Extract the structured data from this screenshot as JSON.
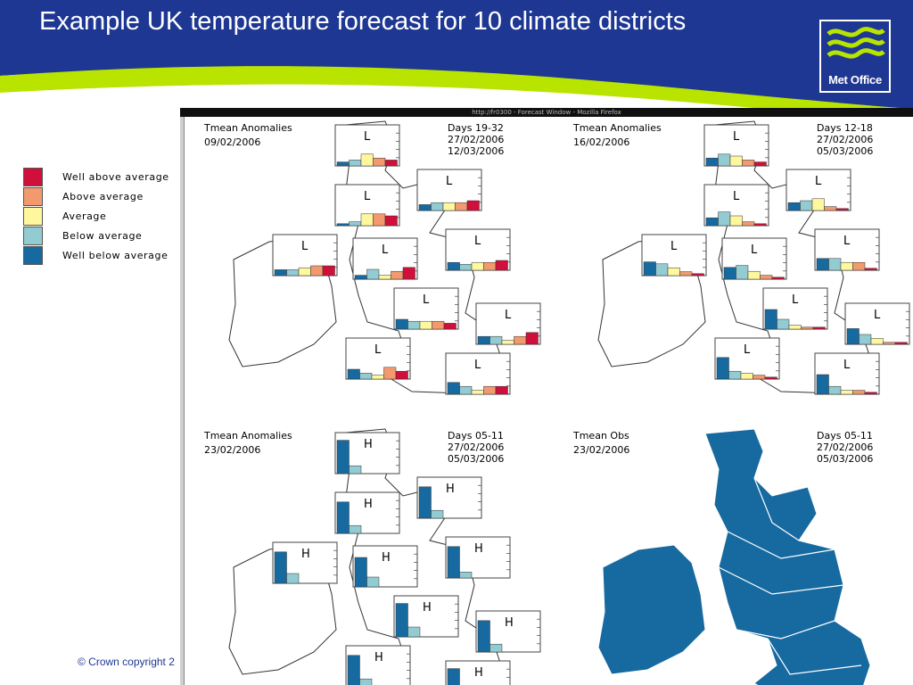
{
  "slide": {
    "title": "Example UK temperature forecast for 10 climate districts",
    "copyright": "© Crown copyright 2",
    "logo_text": "Met Office",
    "banner_color": "#1e3793",
    "accent_color": "#b8e400"
  },
  "legend": {
    "items": [
      {
        "label": "Well above average",
        "color": "#d0103a"
      },
      {
        "label": "Above average",
        "color": "#f29a6e"
      },
      {
        "label": "Average",
        "color": "#fff79e"
      },
      {
        "label": "Below average",
        "color": "#93cbd2"
      },
      {
        "label": "Well below average",
        "color": "#176aa0"
      }
    ]
  },
  "browser": {
    "title": "http://fr0300 - Forecast Window - Mozilla Firefox"
  },
  "panels": [
    {
      "heading": "Tmean Anomalies",
      "issue_date": "09/02/2006",
      "period": "Days 19-32",
      "start": "27/02/2006",
      "end": "12/03/2006",
      "district_values": [
        {
          "label": "L",
          "values": [
            0.1,
            0.15,
            0.3,
            0.2,
            0.15
          ]
        },
        {
          "label": "L",
          "values": [
            0.05,
            0.1,
            0.3,
            0.3,
            0.25
          ]
        },
        {
          "label": "L",
          "values": [
            0.15,
            0.2,
            0.2,
            0.2,
            0.25
          ]
        },
        {
          "label": "L",
          "values": [
            0.15,
            0.15,
            0.2,
            0.25,
            0.25
          ]
        },
        {
          "label": "L",
          "values": [
            0.1,
            0.25,
            0.1,
            0.2,
            0.3
          ]
        },
        {
          "label": "L",
          "values": [
            0.2,
            0.15,
            0.2,
            0.2,
            0.25
          ]
        },
        {
          "label": "L",
          "values": [
            0.25,
            0.2,
            0.2,
            0.2,
            0.15
          ]
        },
        {
          "label": "L",
          "values": [
            0.2,
            0.2,
            0.1,
            0.2,
            0.3
          ]
        },
        {
          "label": "L",
          "values": [
            0.25,
            0.15,
            0.1,
            0.3,
            0.2
          ]
        },
        {
          "label": "L",
          "values": [
            0.3,
            0.2,
            0.1,
            0.2,
            0.2
          ]
        }
      ]
    },
    {
      "heading": "Tmean Anomalies",
      "issue_date": "16/02/2006",
      "period": "Days 12-18",
      "start": "27/02/2006",
      "end": "05/03/2006",
      "district_values": [
        {
          "label": "L",
          "values": [
            0.2,
            0.3,
            0.25,
            0.15,
            0.1
          ]
        },
        {
          "label": "L",
          "values": [
            0.2,
            0.35,
            0.25,
            0.1,
            0.05
          ]
        },
        {
          "label": "L",
          "values": [
            0.2,
            0.25,
            0.3,
            0.1,
            0.05
          ]
        },
        {
          "label": "L",
          "values": [
            0.35,
            0.3,
            0.2,
            0.1,
            0.05
          ]
        },
        {
          "label": "L",
          "values": [
            0.3,
            0.35,
            0.2,
            0.1,
            0.05
          ]
        },
        {
          "label": "L",
          "values": [
            0.3,
            0.3,
            0.2,
            0.2,
            0.05
          ]
        },
        {
          "label": "L",
          "values": [
            0.5,
            0.25,
            0.1,
            0.05,
            0.05
          ]
        },
        {
          "label": "L",
          "values": [
            0.4,
            0.25,
            0.15,
            0.05,
            0.05
          ]
        },
        {
          "label": "L",
          "values": [
            0.55,
            0.2,
            0.15,
            0.1,
            0.05
          ]
        },
        {
          "label": "L",
          "values": [
            0.5,
            0.2,
            0.1,
            0.1,
            0.05
          ]
        }
      ]
    },
    {
      "heading": "Tmean Anomalies",
      "issue_date": "23/02/2006",
      "period": "Days 05-11",
      "start": "27/02/2006",
      "end": "05/03/2006",
      "district_values": [
        {
          "label": "H",
          "values": [
            0.85,
            0.2,
            0,
            0,
            0
          ]
        },
        {
          "label": "H",
          "values": [
            0.8,
            0.2,
            0,
            0,
            0
          ]
        },
        {
          "label": "H",
          "values": [
            0.8,
            0.2,
            0,
            0,
            0
          ]
        },
        {
          "label": "H",
          "values": [
            0.8,
            0.25,
            0,
            0,
            0
          ]
        },
        {
          "label": "H",
          "values": [
            0.75,
            0.25,
            0,
            0,
            0
          ]
        },
        {
          "label": "H",
          "values": [
            0.8,
            0.15,
            0,
            0,
            0
          ]
        },
        {
          "label": "H",
          "values": [
            0.85,
            0.25,
            0,
            0,
            0
          ]
        },
        {
          "label": "H",
          "values": [
            0.8,
            0.2,
            0,
            0,
            0
          ]
        },
        {
          "label": "H",
          "values": [
            0.8,
            0.2,
            0,
            0,
            0
          ]
        },
        {
          "label": "H",
          "values": [
            0.85,
            0.2,
            0,
            0,
            0
          ]
        }
      ]
    },
    {
      "heading": "Tmean Obs",
      "issue_date": "23/02/2006",
      "period": "Days 05-11",
      "start": "27/02/2006",
      "end": "05/03/2006",
      "filled_color": "#176aa0"
    }
  ]
}
